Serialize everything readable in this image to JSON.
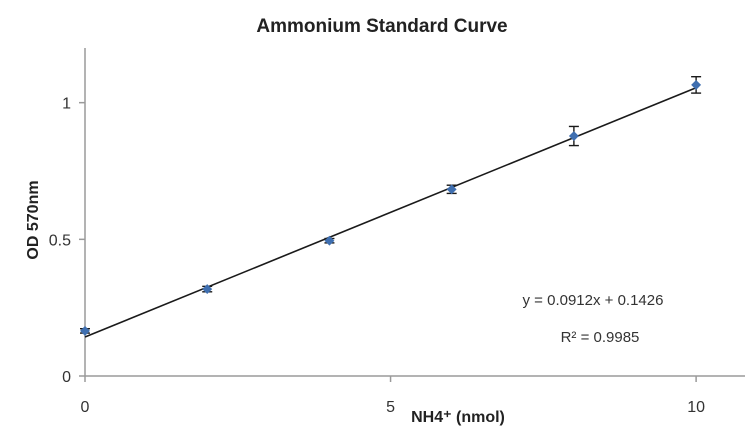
{
  "chart_data": {
    "type": "scatter",
    "title": "Ammonium Standard Curve",
    "xlabel": "NH4⁺ (nmol)",
    "ylabel": "OD 570nm",
    "xlim": [
      0,
      10.8
    ],
    "ylim": [
      0,
      1.2
    ],
    "xticks": [
      0,
      5,
      10
    ],
    "yticks": [
      0,
      0.5,
      1
    ],
    "xtick_labels": [
      "0",
      "5",
      "10"
    ],
    "ytick_labels": [
      "0",
      "0.5",
      "1"
    ],
    "grid": false,
    "legend": "none",
    "marker_color": "#3f6fb0",
    "series": [
      {
        "x": [
          0,
          2,
          4,
          6,
          8,
          10
        ],
        "y": [
          0.165,
          0.318,
          0.495,
          0.683,
          0.878,
          1.065
        ],
        "error": [
          0.008,
          0.01,
          0.008,
          0.015,
          0.035,
          0.03
        ]
      }
    ],
    "trendline": {
      "slope": 0.0912,
      "intercept": 0.1426
    },
    "annotations": {
      "equation": "y = 0.0912x + 0.1426",
      "r_squared": "R² = 0.9985"
    }
  }
}
